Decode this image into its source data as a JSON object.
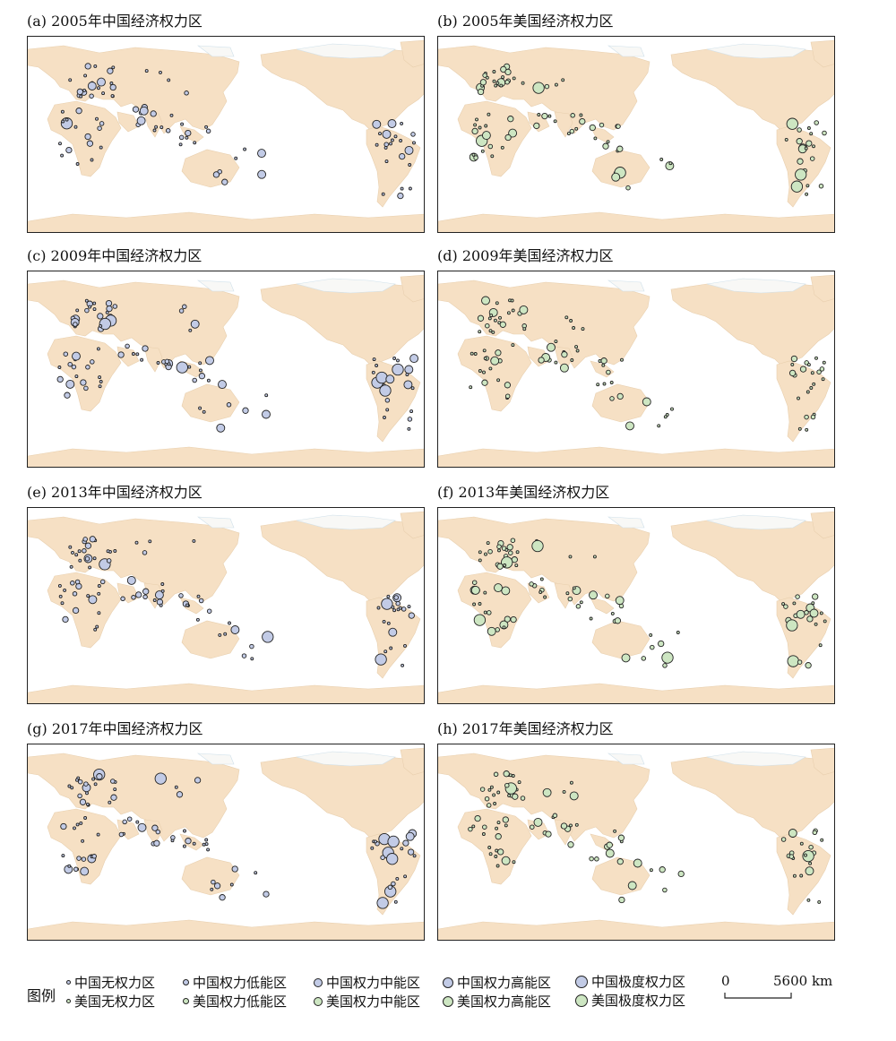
{
  "panels": [
    {
      "title": "(a) 2005年中国经济权力区",
      "country": "china"
    },
    {
      "title": "(b) 2005年美国经济权力区",
      "country": "usa"
    },
    {
      "title": "(c) 2009年中国经济权力区",
      "country": "china"
    },
    {
      "title": "(d) 2009年美国经济权力区",
      "country": "usa"
    },
    {
      "title": "(e) 2013年中国经济权力区",
      "country": "china"
    },
    {
      "title": "(f) 2013年美国经济权力区",
      "country": "usa"
    },
    {
      "title": "(g) 2017年中国经济权力区",
      "country": "china"
    },
    {
      "title": "(h) 2017年美国经济权力区",
      "country": "usa"
    }
  ],
  "colors": {
    "china_fill": "#c2cbe6",
    "usa_fill": "#cde6c2",
    "land": "#f6e0c4",
    "ocean": "#ffffff",
    "ice": "#f8f8f6",
    "outline": "#222222"
  },
  "legend": {
    "heading": "图例",
    "rows": [
      {
        "country": "china",
        "items": [
          "中国无权力区",
          "中国权力低能区",
          "中国权力中能区",
          "中国权力高能区",
          "中国极度权力区"
        ]
      },
      {
        "country": "usa",
        "items": [
          "美国无权力区",
          "美国权力低能区",
          "美国权力中能区",
          "美国权力高能区",
          "美国极度权力区"
        ]
      }
    ]
  },
  "scalebar": {
    "zero": "0",
    "distance": "5600 km"
  }
}
